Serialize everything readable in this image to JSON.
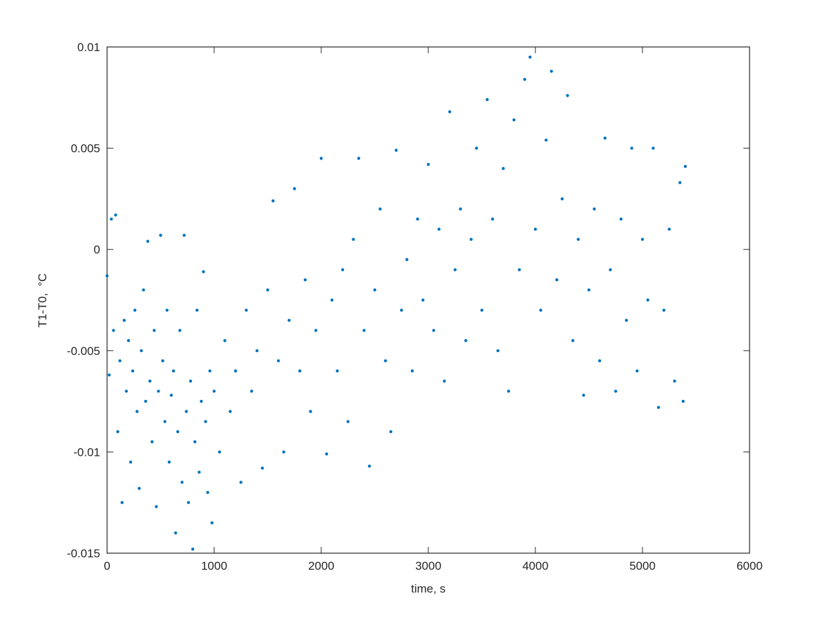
{
  "chart_data": {
    "type": "scatter",
    "title": "",
    "xlabel": "time, s",
    "ylabel": "T1-T0,  °C",
    "xlim": [
      0,
      6000
    ],
    "ylim": [
      -0.015,
      0.01
    ],
    "xticks": [
      0,
      1000,
      2000,
      3000,
      4000,
      5000,
      6000
    ],
    "xtick_labels": [
      "0",
      "1000",
      "2000",
      "3000",
      "4000",
      "5000",
      "6000"
    ],
    "yticks": [
      -0.015,
      -0.01,
      -0.005,
      0,
      0.005,
      0.01
    ],
    "ytick_labels": [
      "-0.015",
      "-0.01",
      "-0.005",
      "0",
      "0.005",
      "0.01"
    ],
    "grid": false,
    "marker_color": "#0072BD",
    "series": [
      {
        "points": [
          [
            0,
            -0.0013
          ],
          [
            20,
            -0.0062
          ],
          [
            40,
            0.0015
          ],
          [
            60,
            -0.004
          ],
          [
            80,
            0.0017
          ],
          [
            100,
            -0.009
          ],
          [
            120,
            -0.0055
          ],
          [
            140,
            -0.0125
          ],
          [
            160,
            -0.0035
          ],
          [
            180,
            -0.007
          ],
          [
            200,
            -0.0045
          ],
          [
            220,
            -0.0105
          ],
          [
            240,
            -0.006
          ],
          [
            260,
            -0.003
          ],
          [
            280,
            -0.008
          ],
          [
            300,
            -0.0118
          ],
          [
            320,
            -0.005
          ],
          [
            340,
            -0.002
          ],
          [
            360,
            -0.0075
          ],
          [
            380,
            0.0004
          ],
          [
            400,
            -0.0065
          ],
          [
            420,
            -0.0095
          ],
          [
            440,
            -0.004
          ],
          [
            460,
            -0.0127
          ],
          [
            480,
            -0.007
          ],
          [
            500,
            0.0007
          ],
          [
            520,
            -0.0055
          ],
          [
            540,
            -0.0085
          ],
          [
            560,
            -0.003
          ],
          [
            580,
            -0.0105
          ],
          [
            600,
            -0.0072
          ],
          [
            620,
            -0.006
          ],
          [
            640,
            -0.014
          ],
          [
            660,
            -0.009
          ],
          [
            680,
            -0.004
          ],
          [
            700,
            -0.0115
          ],
          [
            720,
            0.0007
          ],
          [
            740,
            -0.008
          ],
          [
            760,
            -0.0125
          ],
          [
            780,
            -0.0065
          ],
          [
            800,
            -0.0148
          ],
          [
            820,
            -0.0095
          ],
          [
            840,
            -0.003
          ],
          [
            860,
            -0.011
          ],
          [
            880,
            -0.0075
          ],
          [
            900,
            -0.0011
          ],
          [
            920,
            -0.0085
          ],
          [
            940,
            -0.012
          ],
          [
            960,
            -0.006
          ],
          [
            980,
            -0.0135
          ],
          [
            1000,
            -0.007
          ],
          [
            1050,
            -0.01
          ],
          [
            1100,
            -0.0045
          ],
          [
            1150,
            -0.008
          ],
          [
            1200,
            -0.006
          ],
          [
            1250,
            -0.0115
          ],
          [
            1300,
            -0.003
          ],
          [
            1350,
            -0.007
          ],
          [
            1400,
            -0.005
          ],
          [
            1450,
            -0.0108
          ],
          [
            1500,
            -0.002
          ],
          [
            1550,
            0.0024
          ],
          [
            1600,
            -0.0055
          ],
          [
            1650,
            -0.01
          ],
          [
            1700,
            -0.0035
          ],
          [
            1750,
            0.003
          ],
          [
            1800,
            -0.006
          ],
          [
            1850,
            -0.0015
          ],
          [
            1900,
            -0.008
          ],
          [
            1950,
            -0.004
          ],
          [
            2000,
            0.0045
          ],
          [
            2050,
            -0.0101
          ],
          [
            2100,
            -0.0025
          ],
          [
            2150,
            -0.006
          ],
          [
            2200,
            -0.001
          ],
          [
            2250,
            -0.0085
          ],
          [
            2300,
            0.0005
          ],
          [
            2350,
            0.0045
          ],
          [
            2400,
            -0.004
          ],
          [
            2450,
            -0.0107
          ],
          [
            2500,
            -0.002
          ],
          [
            2550,
            0.002
          ],
          [
            2600,
            -0.0055
          ],
          [
            2650,
            -0.009
          ],
          [
            2700,
            0.0049
          ],
          [
            2750,
            -0.003
          ],
          [
            2800,
            -0.0005
          ],
          [
            2850,
            -0.006
          ],
          [
            2900,
            0.0015
          ],
          [
            2950,
            -0.0025
          ],
          [
            3000,
            0.0042
          ],
          [
            3050,
            -0.004
          ],
          [
            3100,
            0.001
          ],
          [
            3150,
            -0.0065
          ],
          [
            3200,
            0.0068
          ],
          [
            3250,
            -0.001
          ],
          [
            3300,
            0.002
          ],
          [
            3350,
            -0.0045
          ],
          [
            3400,
            0.0005
          ],
          [
            3450,
            0.005
          ],
          [
            3500,
            -0.003
          ],
          [
            3550,
            0.0074
          ],
          [
            3600,
            0.0015
          ],
          [
            3650,
            -0.005
          ],
          [
            3700,
            0.004
          ],
          [
            3750,
            -0.007
          ],
          [
            3800,
            0.0064
          ],
          [
            3850,
            -0.001
          ],
          [
            3900,
            0.0084
          ],
          [
            3950,
            0.0095
          ],
          [
            4000,
            0.001
          ],
          [
            4050,
            -0.003
          ],
          [
            4100,
            0.0054
          ],
          [
            4150,
            0.0088
          ],
          [
            4200,
            -0.0015
          ],
          [
            4250,
            0.0025
          ],
          [
            4300,
            0.0076
          ],
          [
            4350,
            -0.0045
          ],
          [
            4400,
            0.0005
          ],
          [
            4450,
            -0.0072
          ],
          [
            4500,
            -0.002
          ],
          [
            4550,
            0.002
          ],
          [
            4600,
            -0.0055
          ],
          [
            4650,
            0.0055
          ],
          [
            4700,
            -0.001
          ],
          [
            4750,
            -0.007
          ],
          [
            4800,
            0.0015
          ],
          [
            4850,
            -0.0035
          ],
          [
            4900,
            0.005
          ],
          [
            4950,
            -0.006
          ],
          [
            5000,
            0.0005
          ],
          [
            5050,
            -0.0025
          ],
          [
            5100,
            0.005
          ],
          [
            5150,
            -0.0078
          ],
          [
            5200,
            -0.003
          ],
          [
            5250,
            0.001
          ],
          [
            5300,
            -0.0065
          ],
          [
            5350,
            0.0033
          ],
          [
            5380,
            -0.0075
          ],
          [
            5400,
            0.0041
          ]
        ]
      }
    ]
  }
}
